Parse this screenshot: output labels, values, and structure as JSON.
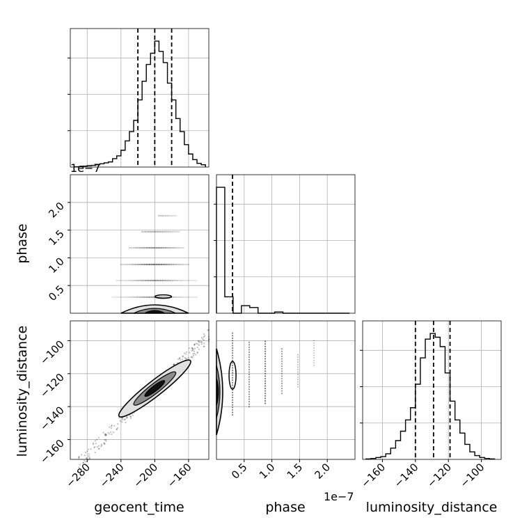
{
  "chart_data": {
    "type": "corner",
    "parameters": [
      "geocent_time",
      "phase",
      "luminosity_distance"
    ],
    "axis_labels": {
      "geocent_time": "geocent_time",
      "phase": "phase",
      "luminosity_distance": "luminosity_distance"
    },
    "offset_text": {
      "phase_yaxis": "1e−7",
      "phase_xaxis": "1e−7"
    },
    "ranges": {
      "geocent_time": [
        -300,
        -136
      ],
      "phase": [
        0,
        2.5
      ],
      "luminosity_distance": [
        -172,
        -88
      ]
    },
    "ticks": {
      "geocent_time": {
        "values": [
          -280,
          -240,
          -200,
          -160
        ],
        "labels": [
          "−280",
          "−240",
          "−200",
          "−160"
        ]
      },
      "phase": {
        "values": [
          0.5,
          1.0,
          1.5,
          2.0
        ],
        "labels": [
          "0.5",
          "1.0",
          "1.5",
          "2.0"
        ]
      },
      "luminosity_distance_y": {
        "values": [
          -100,
          -120,
          -140,
          -160
        ],
        "labels": [
          "−100",
          "−120",
          "−140",
          "−160"
        ]
      },
      "luminosity_distance_x": {
        "values": [
          -160,
          -140,
          -120,
          -100
        ],
        "labels": [
          "−160",
          "−140",
          "−120",
          "−100"
        ]
      }
    },
    "quantiles": {
      "geocent_time": [
        -220,
        -200,
        -180
      ],
      "phase": [
        0.29
      ],
      "luminosity_distance": [
        -140,
        -129,
        -119
      ]
    },
    "histograms": {
      "geocent_time": {
        "bin_edges": [
          -295,
          -290,
          -285,
          -280,
          -275,
          -270,
          -265,
          -260,
          -255,
          -250,
          -245,
          -240,
          -235,
          -230,
          -225,
          -220,
          -215,
          -210,
          -205,
          -200,
          -195,
          -190,
          -185,
          -180,
          -175,
          -170,
          -165,
          -160,
          -155,
          -150,
          -145,
          -140
        ],
        "counts": [
          0.2,
          0.5,
          1,
          1.5,
          1.8,
          2.5,
          3.5,
          4.5,
          5.5,
          9,
          12,
          18,
          28,
          38,
          50,
          72,
          92,
          110,
          122,
          135,
          124,
          112,
          90,
          72,
          52,
          38,
          24,
          14,
          8,
          4,
          2.5
        ]
      },
      "phase": {
        "bin_edges": [
          0,
          0.15,
          0.3,
          0.45,
          0.6,
          0.75,
          0.9,
          1.05,
          1.2,
          1.35,
          1.5,
          1.65,
          1.8,
          1.95,
          2.1,
          2.25,
          2.4
        ],
        "counts": [
          100,
          13,
          0,
          6,
          4.5,
          0,
          0,
          1,
          0,
          0,
          0,
          0,
          0,
          0,
          0,
          0
        ]
      },
      "luminosity_distance": {
        "bin_edges": [
          -170,
          -167,
          -164,
          -161,
          -158,
          -155,
          -152,
          -149,
          -146,
          -143,
          -140,
          -137,
          -134,
          -131,
          -128,
          -125,
          -122,
          -119,
          -116,
          -113,
          -110,
          -107,
          -104,
          -101,
          -98,
          -95,
          -92
        ],
        "counts": [
          0.5,
          1,
          2,
          3,
          6,
          12,
          20,
          30,
          42,
          55,
          80,
          108,
          128,
          134,
          130,
          120,
          92,
          62,
          42,
          28,
          16,
          8,
          4,
          2,
          1,
          0.5
        ]
      }
    },
    "grid": true,
    "style": "black contours with grey filled density and scattered grey sample points"
  }
}
